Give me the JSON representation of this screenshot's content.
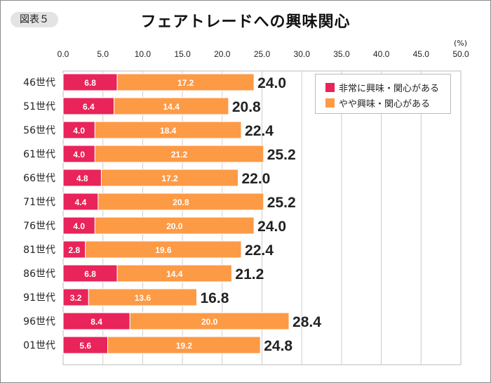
{
  "badge": "図表５",
  "chart_data": {
    "type": "bar",
    "stacked": true,
    "orientation": "horizontal",
    "title": "フェアトレードへの興味関心",
    "unit": "(%)",
    "xlim": [
      0,
      50
    ],
    "xticks": [
      "0.0",
      "5.0",
      "10.0",
      "15.0",
      "20.0",
      "25.0",
      "30.0",
      "35.0",
      "40.0",
      "45.0",
      "50.0"
    ],
    "grid": true,
    "legend_position": "top-right",
    "categories": [
      "46世代",
      "51世代",
      "56世代",
      "61世代",
      "66世代",
      "71世代",
      "76世代",
      "81世代",
      "86世代",
      "91世代",
      "96世代",
      "01世代"
    ],
    "series": [
      {
        "name": "非常に興味・関心がある",
        "color": "#e8245a",
        "values": [
          6.8,
          6.4,
          4.0,
          4.0,
          4.8,
          4.4,
          4.0,
          2.8,
          6.8,
          3.2,
          8.4,
          5.6
        ]
      },
      {
        "name": "やや興味・関心がある",
        "color": "#fd9a45",
        "values": [
          17.2,
          14.4,
          18.4,
          21.2,
          17.2,
          20.8,
          20.0,
          19.6,
          14.4,
          13.6,
          20.0,
          19.2
        ]
      }
    ],
    "totals": [
      "24.0",
      "20.8",
      "22.4",
      "25.2",
      "22.0",
      "25.2",
      "24.0",
      "22.4",
      "21.2",
      "16.8",
      "28.4",
      "24.8"
    ]
  }
}
